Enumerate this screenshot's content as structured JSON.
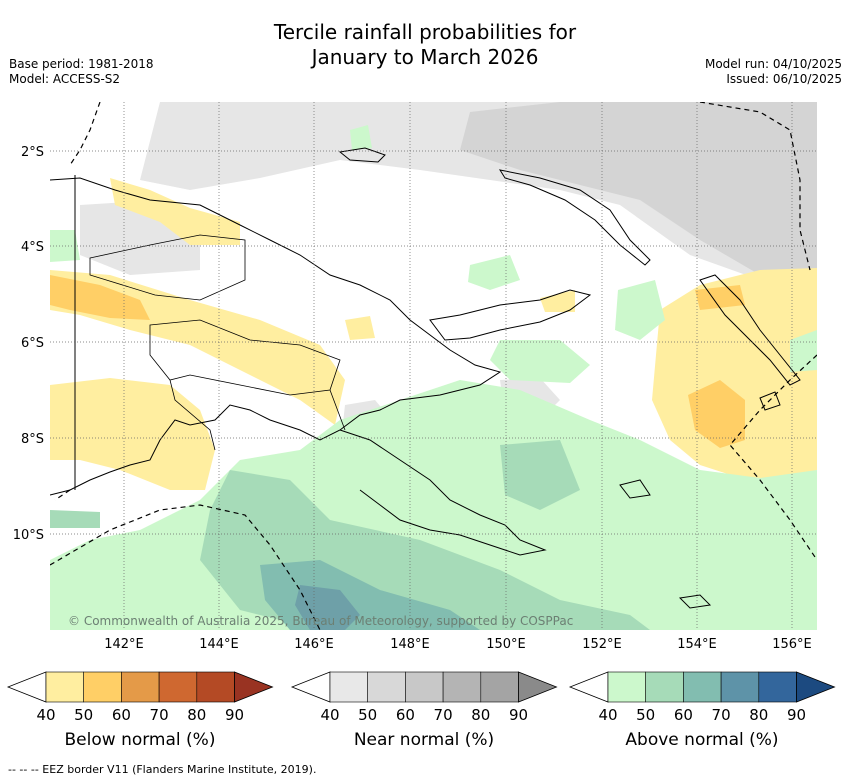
{
  "title": {
    "line1": "Tercile rainfall probabilities for",
    "line2": "January to March 2026"
  },
  "meta": {
    "base_period": "Base period: 1981-2018",
    "model": "Model: ACCESS-S2",
    "model_run": "Model run: 04/10/2025",
    "issued": "Issued: 06/10/2025"
  },
  "map": {
    "lat_labels": [
      "2°S",
      "4°S",
      "6°S",
      "8°S",
      "10°S"
    ],
    "lon_labels": [
      "142°E",
      "144°E",
      "146°E",
      "148°E",
      "150°E",
      "152°E",
      "154°E",
      "156°E"
    ],
    "copyright": "© Commonwealth of Australia 2025, Bureau of Meteorology, supported by COSPPac"
  },
  "colorbars": [
    {
      "label": "Below normal (%)",
      "ticks": [
        "40",
        "50",
        "60",
        "70",
        "80",
        "90"
      ],
      "colors": [
        "#ffeea0",
        "#ffcf66",
        "#e49a48",
        "#cf6830",
        "#b44a25",
        "#993322"
      ]
    },
    {
      "label": "Near normal (%)",
      "ticks": [
        "40",
        "50",
        "60",
        "70",
        "80",
        "90"
      ],
      "colors": [
        "#e8e8e8",
        "#d8d8d8",
        "#c8c8c8",
        "#b4b4b4",
        "#a4a4a4",
        "#8a8a8a"
      ]
    },
    {
      "label": "Above normal (%)",
      "ticks": [
        "40",
        "50",
        "60",
        "70",
        "80",
        "90"
      ],
      "colors": [
        "#ccf8cc",
        "#a6dbb8",
        "#82bdb0",
        "#5e93a8",
        "#33669c",
        "#1c4a80"
      ]
    }
  ],
  "footer": "--  --  -- EEZ border V11 (Flanders Marine Institute, 2019)."
}
